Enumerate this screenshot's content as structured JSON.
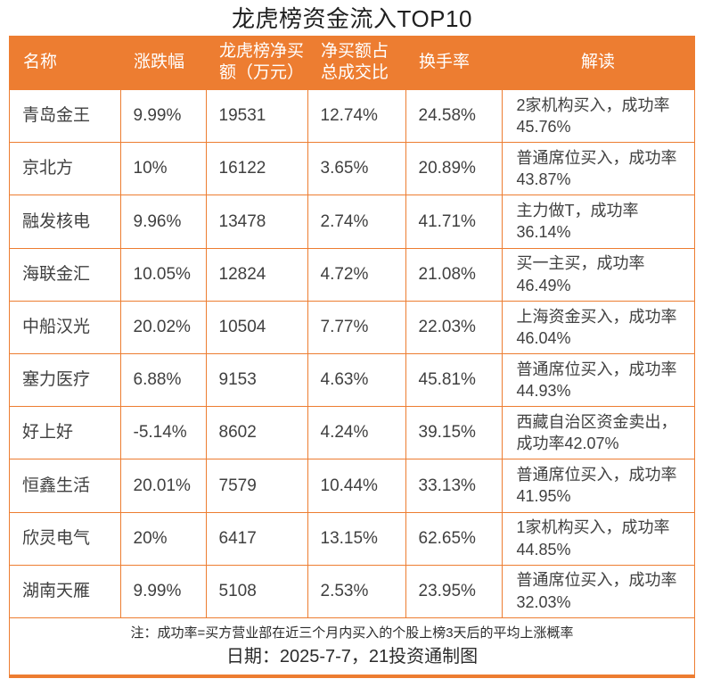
{
  "title": "龙虎榜资金流入TOP10",
  "colors": {
    "accent_orange": "#ED7D31",
    "header_text": "#FFFFFF",
    "body_text": "#404040"
  },
  "chart_data": {
    "type": "table",
    "title": "龙虎榜资金流入TOP10",
    "columns": [
      {
        "key": "name",
        "label": "名称"
      },
      {
        "key": "change",
        "label": "涨跌幅"
      },
      {
        "key": "net_buy",
        "label": "龙虎榜净买\n额（万元）"
      },
      {
        "key": "ratio",
        "label": "净买额占\n总成交比"
      },
      {
        "key": "turnover",
        "label": "换手率"
      },
      {
        "key": "interpretation",
        "label": "解读"
      }
    ],
    "rows": [
      {
        "name": "青岛金王",
        "change": "9.99%",
        "net_buy": "19531",
        "ratio": "12.74%",
        "turnover": "24.58%",
        "interpretation": "2家机构买入，成功率45.76%"
      },
      {
        "name": "京北方",
        "change": "10%",
        "net_buy": "16122",
        "ratio": "3.65%",
        "turnover": "20.89%",
        "interpretation": "普通席位买入，成功率43.87%"
      },
      {
        "name": "融发核电",
        "change": "9.96%",
        "net_buy": "13478",
        "ratio": "2.74%",
        "turnover": "41.71%",
        "interpretation": "主力做T，成功率36.14%"
      },
      {
        "name": "海联金汇",
        "change": "10.05%",
        "net_buy": "12824",
        "ratio": "4.72%",
        "turnover": "21.08%",
        "interpretation": "买一主买，成功率46.49%"
      },
      {
        "name": "中船汉光",
        "change": "20.02%",
        "net_buy": "10504",
        "ratio": "7.77%",
        "turnover": "22.03%",
        "interpretation": "上海资金买入，成功率46.04%"
      },
      {
        "name": "塞力医疗",
        "change": "6.88%",
        "net_buy": "9153",
        "ratio": "4.63%",
        "turnover": "45.81%",
        "interpretation": "普通席位买入，成功率44.93%"
      },
      {
        "name": "好上好",
        "change": "-5.14%",
        "net_buy": "8602",
        "ratio": "4.24%",
        "turnover": "39.15%",
        "interpretation": "西藏自治区资金卖出，成功率42.07%"
      },
      {
        "name": "恒鑫生活",
        "change": "20.01%",
        "net_buy": "7579",
        "ratio": "10.44%",
        "turnover": "33.13%",
        "interpretation": "普通席位买入，成功率41.95%"
      },
      {
        "name": "欣灵电气",
        "change": "20%",
        "net_buy": "6417",
        "ratio": "13.15%",
        "turnover": "62.65%",
        "interpretation": "1家机构买入，成功率44.85%"
      },
      {
        "name": "湖南天雁",
        "change": "9.99%",
        "net_buy": "5108",
        "ratio": "2.53%",
        "turnover": "23.95%",
        "interpretation": "普通席位买入，成功率32.03%"
      }
    ],
    "note": "注：成功率=买方营业部在近三个月内买入的个股上榜3天后的平均上涨概率",
    "date_line": "日期：2025-7-7，21投资通制图"
  }
}
